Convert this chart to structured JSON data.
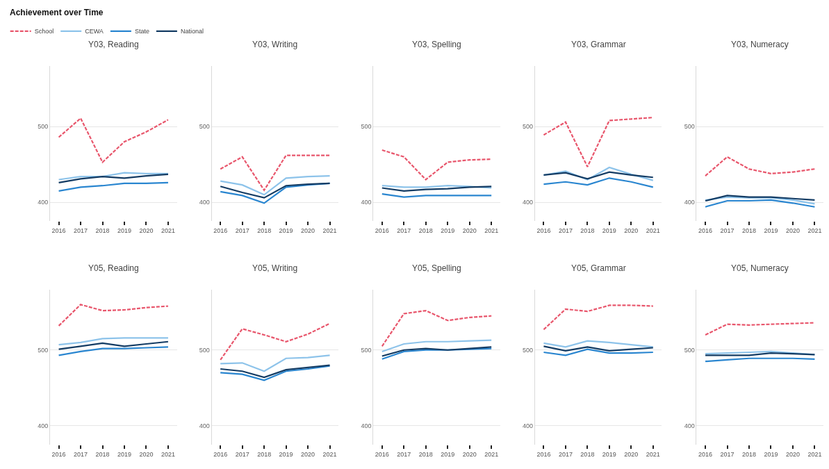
{
  "chart_data": [
    {
      "type": "line",
      "title": "Y03, Reading",
      "annotations": [
        "Achievement over Time"
      ],
      "legend": "top left",
      "categories": [
        "2016",
        "2017",
        "2018",
        "2019",
        "2020",
        "2021"
      ],
      "ylim": [
        375,
        580
      ],
      "yticks": [
        400,
        500
      ],
      "grid": "y",
      "marker": "none",
      "series": [
        {
          "name": "School",
          "color": "#e8566c",
          "line_style": "dashed",
          "values": [
            486,
            511,
            453,
            480,
            493,
            509
          ]
        },
        {
          "name": "CEWA",
          "color": "#8dc3ea",
          "line_style": "solid",
          "values": [
            430,
            434,
            434,
            439,
            438,
            438
          ]
        },
        {
          "name": "State",
          "color": "#2a86d0",
          "line_style": "solid",
          "values": [
            415,
            420,
            422,
            425,
            425,
            426
          ]
        },
        {
          "name": "National",
          "color": "#143c64",
          "line_style": "solid",
          "values": [
            426,
            431,
            434,
            432,
            435,
            437
          ]
        }
      ]
    },
    {
      "type": "line",
      "title": "Y03, Writing",
      "categories": [
        "2016",
        "2017",
        "2018",
        "2019",
        "2020",
        "2021"
      ],
      "ylim": [
        375,
        580
      ],
      "yticks": [
        400,
        500
      ],
      "grid": "y",
      "marker": "none",
      "series": [
        {
          "color": "#e8566c",
          "line_style": "dashed",
          "values": [
            444,
            460,
            416,
            462,
            462,
            462
          ]
        },
        {
          "color": "#8dc3ea",
          "line_style": "solid",
          "values": [
            428,
            423,
            410,
            432,
            434,
            435
          ]
        },
        {
          "color": "#2a86d0",
          "line_style": "solid",
          "values": [
            414,
            409,
            399,
            420,
            423,
            425
          ]
        },
        {
          "color": "#143c64",
          "line_style": "solid",
          "values": [
            421,
            413,
            406,
            422,
            424,
            425
          ]
        }
      ]
    },
    {
      "type": "line",
      "title": "Y03, Spelling",
      "categories": [
        "2016",
        "2017",
        "2018",
        "2019",
        "2020",
        "2021"
      ],
      "ylim": [
        375,
        580
      ],
      "yticks": [
        400,
        500
      ],
      "grid": "y",
      "marker": "none",
      "series": [
        {
          "color": "#e8566c",
          "line_style": "dashed",
          "values": [
            469,
            460,
            430,
            453,
            456,
            457
          ]
        },
        {
          "color": "#8dc3ea",
          "line_style": "solid",
          "values": [
            422,
            420,
            420,
            422,
            421,
            419
          ]
        },
        {
          "color": "#2a86d0",
          "line_style": "solid",
          "values": [
            411,
            407,
            409,
            409,
            409,
            409
          ]
        },
        {
          "color": "#143c64",
          "line_style": "solid",
          "values": [
            419,
            415,
            417,
            418,
            420,
            421
          ]
        }
      ]
    },
    {
      "type": "line",
      "title": "Y03, Grammar",
      "categories": [
        "2016",
        "2017",
        "2018",
        "2019",
        "2020",
        "2021"
      ],
      "ylim": [
        375,
        580
      ],
      "yticks": [
        400,
        500
      ],
      "grid": "y",
      "marker": "none",
      "series": [
        {
          "color": "#e8566c",
          "line_style": "dashed",
          "values": [
            489,
            506,
            447,
            508,
            510,
            512
          ]
        },
        {
          "color": "#8dc3ea",
          "line_style": "solid",
          "values": [
            436,
            441,
            430,
            446,
            437,
            429
          ]
        },
        {
          "color": "#2a86d0",
          "line_style": "solid",
          "values": [
            424,
            427,
            423,
            432,
            427,
            420
          ]
        },
        {
          "color": "#143c64",
          "line_style": "solid",
          "values": [
            436,
            439,
            431,
            440,
            436,
            433
          ]
        }
      ]
    },
    {
      "type": "line",
      "title": "Y03, Numeracy",
      "categories": [
        "2016",
        "2017",
        "2018",
        "2019",
        "2020",
        "2021"
      ],
      "ylim": [
        375,
        580
      ],
      "yticks": [
        400,
        500
      ],
      "grid": "y",
      "marker": "none",
      "series": [
        {
          "color": "#e8566c",
          "line_style": "dashed",
          "values": [
            435,
            460,
            444,
            438,
            440,
            444
          ]
        },
        {
          "color": "#8dc3ea",
          "line_style": "solid",
          "values": [
            403,
            407,
            406,
            406,
            403,
            398
          ]
        },
        {
          "color": "#2a86d0",
          "line_style": "solid",
          "values": [
            394,
            402,
            402,
            403,
            399,
            394
          ]
        },
        {
          "color": "#143c64",
          "line_style": "solid",
          "values": [
            402,
            409,
            407,
            407,
            405,
            403
          ]
        }
      ]
    },
    {
      "type": "line",
      "title": "Y05, Reading",
      "categories": [
        "2016",
        "2017",
        "2018",
        "2019",
        "2020",
        "2021"
      ],
      "ylim": [
        375,
        580
      ],
      "yticks": [
        400,
        500
      ],
      "grid": "y",
      "marker": "none",
      "series": [
        {
          "color": "#e8566c",
          "line_style": "dashed",
          "values": [
            532,
            560,
            552,
            553,
            556,
            558
          ]
        },
        {
          "color": "#8dc3ea",
          "line_style": "solid",
          "values": [
            507,
            510,
            515,
            516,
            516,
            516
          ]
        },
        {
          "color": "#2a86d0",
          "line_style": "solid",
          "values": [
            493,
            498,
            502,
            502,
            503,
            504
          ]
        },
        {
          "color": "#143c64",
          "line_style": "solid",
          "values": [
            501,
            505,
            509,
            505,
            508,
            511
          ]
        }
      ]
    },
    {
      "type": "line",
      "title": "Y05, Writing",
      "categories": [
        "2016",
        "2017",
        "2018",
        "2019",
        "2020",
        "2021"
      ],
      "ylim": [
        375,
        580
      ],
      "yticks": [
        400,
        500
      ],
      "grid": "y",
      "marker": "none",
      "series": [
        {
          "color": "#e8566c",
          "line_style": "dashed",
          "values": [
            487,
            528,
            520,
            511,
            521,
            535
          ]
        },
        {
          "color": "#8dc3ea",
          "line_style": "solid",
          "values": [
            482,
            483,
            472,
            489,
            490,
            493
          ]
        },
        {
          "color": "#2a86d0",
          "line_style": "solid",
          "values": [
            470,
            468,
            460,
            472,
            475,
            479
          ]
        },
        {
          "color": "#143c64",
          "line_style": "solid",
          "values": [
            475,
            472,
            464,
            474,
            477,
            480
          ]
        }
      ]
    },
    {
      "type": "line",
      "title": "Y05, Spelling",
      "categories": [
        "2016",
        "2017",
        "2018",
        "2019",
        "2020",
        "2021"
      ],
      "ylim": [
        375,
        580
      ],
      "yticks": [
        400,
        500
      ],
      "grid": "y",
      "marker": "none",
      "series": [
        {
          "color": "#e8566c",
          "line_style": "dashed",
          "values": [
            505,
            548,
            552,
            539,
            543,
            545
          ]
        },
        {
          "color": "#8dc3ea",
          "line_style": "solid",
          "values": [
            498,
            508,
            511,
            511,
            512,
            513
          ]
        },
        {
          "color": "#2a86d0",
          "line_style": "solid",
          "values": [
            488,
            498,
            500,
            500,
            501,
            502
          ]
        },
        {
          "color": "#143c64",
          "line_style": "solid",
          "values": [
            492,
            500,
            502,
            500,
            502,
            504
          ]
        }
      ]
    },
    {
      "type": "line",
      "title": "Y05, Grammar",
      "categories": [
        "2016",
        "2017",
        "2018",
        "2019",
        "2020",
        "2021"
      ],
      "ylim": [
        375,
        580
      ],
      "yticks": [
        400,
        500
      ],
      "grid": "y",
      "marker": "none",
      "series": [
        {
          "color": "#e8566c",
          "line_style": "dashed",
          "values": [
            527,
            554,
            551,
            559,
            559,
            558
          ]
        },
        {
          "color": "#8dc3ea",
          "line_style": "solid",
          "values": [
            509,
            504,
            512,
            510,
            507,
            504
          ]
        },
        {
          "color": "#2a86d0",
          "line_style": "solid",
          "values": [
            497,
            493,
            501,
            496,
            496,
            497
          ]
        },
        {
          "color": "#143c64",
          "line_style": "solid",
          "values": [
            505,
            499,
            504,
            499,
            501,
            503
          ]
        }
      ]
    },
    {
      "type": "line",
      "title": "Y05, Numeracy",
      "categories": [
        "2016",
        "2017",
        "2018",
        "2019",
        "2020",
        "2021"
      ],
      "ylim": [
        375,
        580
      ],
      "yticks": [
        400,
        500
      ],
      "grid": "y",
      "marker": "none",
      "series": [
        {
          "color": "#e8566c",
          "line_style": "dashed",
          "values": [
            520,
            534,
            533,
            534,
            535,
            536
          ]
        },
        {
          "color": "#8dc3ea",
          "line_style": "solid",
          "values": [
            495,
            496,
            497,
            498,
            496,
            494
          ]
        },
        {
          "color": "#2a86d0",
          "line_style": "solid",
          "values": [
            485,
            487,
            489,
            489,
            489,
            488
          ]
        },
        {
          "color": "#143c64",
          "line_style": "solid",
          "values": [
            493,
            493,
            493,
            496,
            495,
            494
          ]
        }
      ]
    }
  ]
}
